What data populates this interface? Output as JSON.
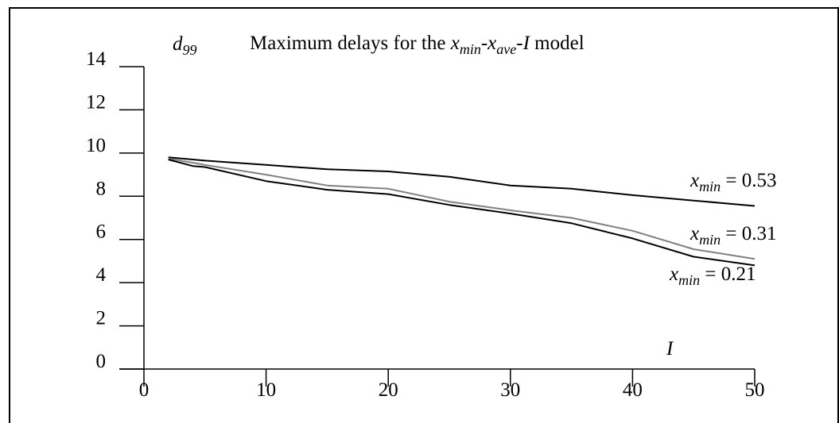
{
  "chart_data": {
    "type": "line",
    "title": {
      "prefix": "Maximum delays for the ",
      "var1": "x",
      "var1_sub": "min",
      "dash1": "-",
      "var2": "x",
      "var2_sub": "ave",
      "dash2": "-",
      "var3": "I",
      "suffix": " model"
    },
    "ylabel": {
      "main": "d",
      "sub": "99"
    },
    "xlabel": "I",
    "xlim": [
      0,
      50
    ],
    "ylim": [
      0,
      14
    ],
    "xticks": [
      "0",
      "10",
      "20",
      "30",
      "40",
      "50"
    ],
    "yticks": [
      "0",
      "2",
      "4",
      "6",
      "8",
      "10",
      "12",
      "14"
    ],
    "grid": false,
    "legend": "inline-right",
    "series": [
      {
        "label": {
          "var": "x",
          "sub": "min",
          "rest": " = 0.53"
        },
        "color": "#000000",
        "x": [
          2,
          5,
          10,
          15,
          20,
          25,
          30,
          35,
          40,
          45,
          50
        ],
        "y": [
          9.8,
          9.65,
          9.45,
          9.25,
          9.15,
          8.9,
          8.5,
          8.35,
          8.05,
          7.8,
          7.55
        ]
      },
      {
        "label": {
          "var": "x",
          "sub": "min",
          "rest": " = 0.31"
        },
        "color": "#808080",
        "x": [
          2,
          5,
          10,
          15,
          20,
          25,
          30,
          35,
          40,
          45,
          50
        ],
        "y": [
          9.75,
          9.45,
          9.0,
          8.5,
          8.35,
          7.75,
          7.35,
          7.0,
          6.4,
          5.55,
          5.1
        ]
      },
      {
        "label": {
          "var": "x",
          "sub": "min",
          "rest": " = 0.21"
        },
        "color": "#000000",
        "x": [
          2,
          4,
          5,
          10,
          15,
          20,
          25,
          30,
          35,
          40,
          45,
          50
        ],
        "y": [
          9.7,
          9.4,
          9.35,
          8.7,
          8.3,
          8.1,
          7.6,
          7.2,
          6.75,
          6.05,
          5.2,
          4.8
        ]
      }
    ]
  }
}
